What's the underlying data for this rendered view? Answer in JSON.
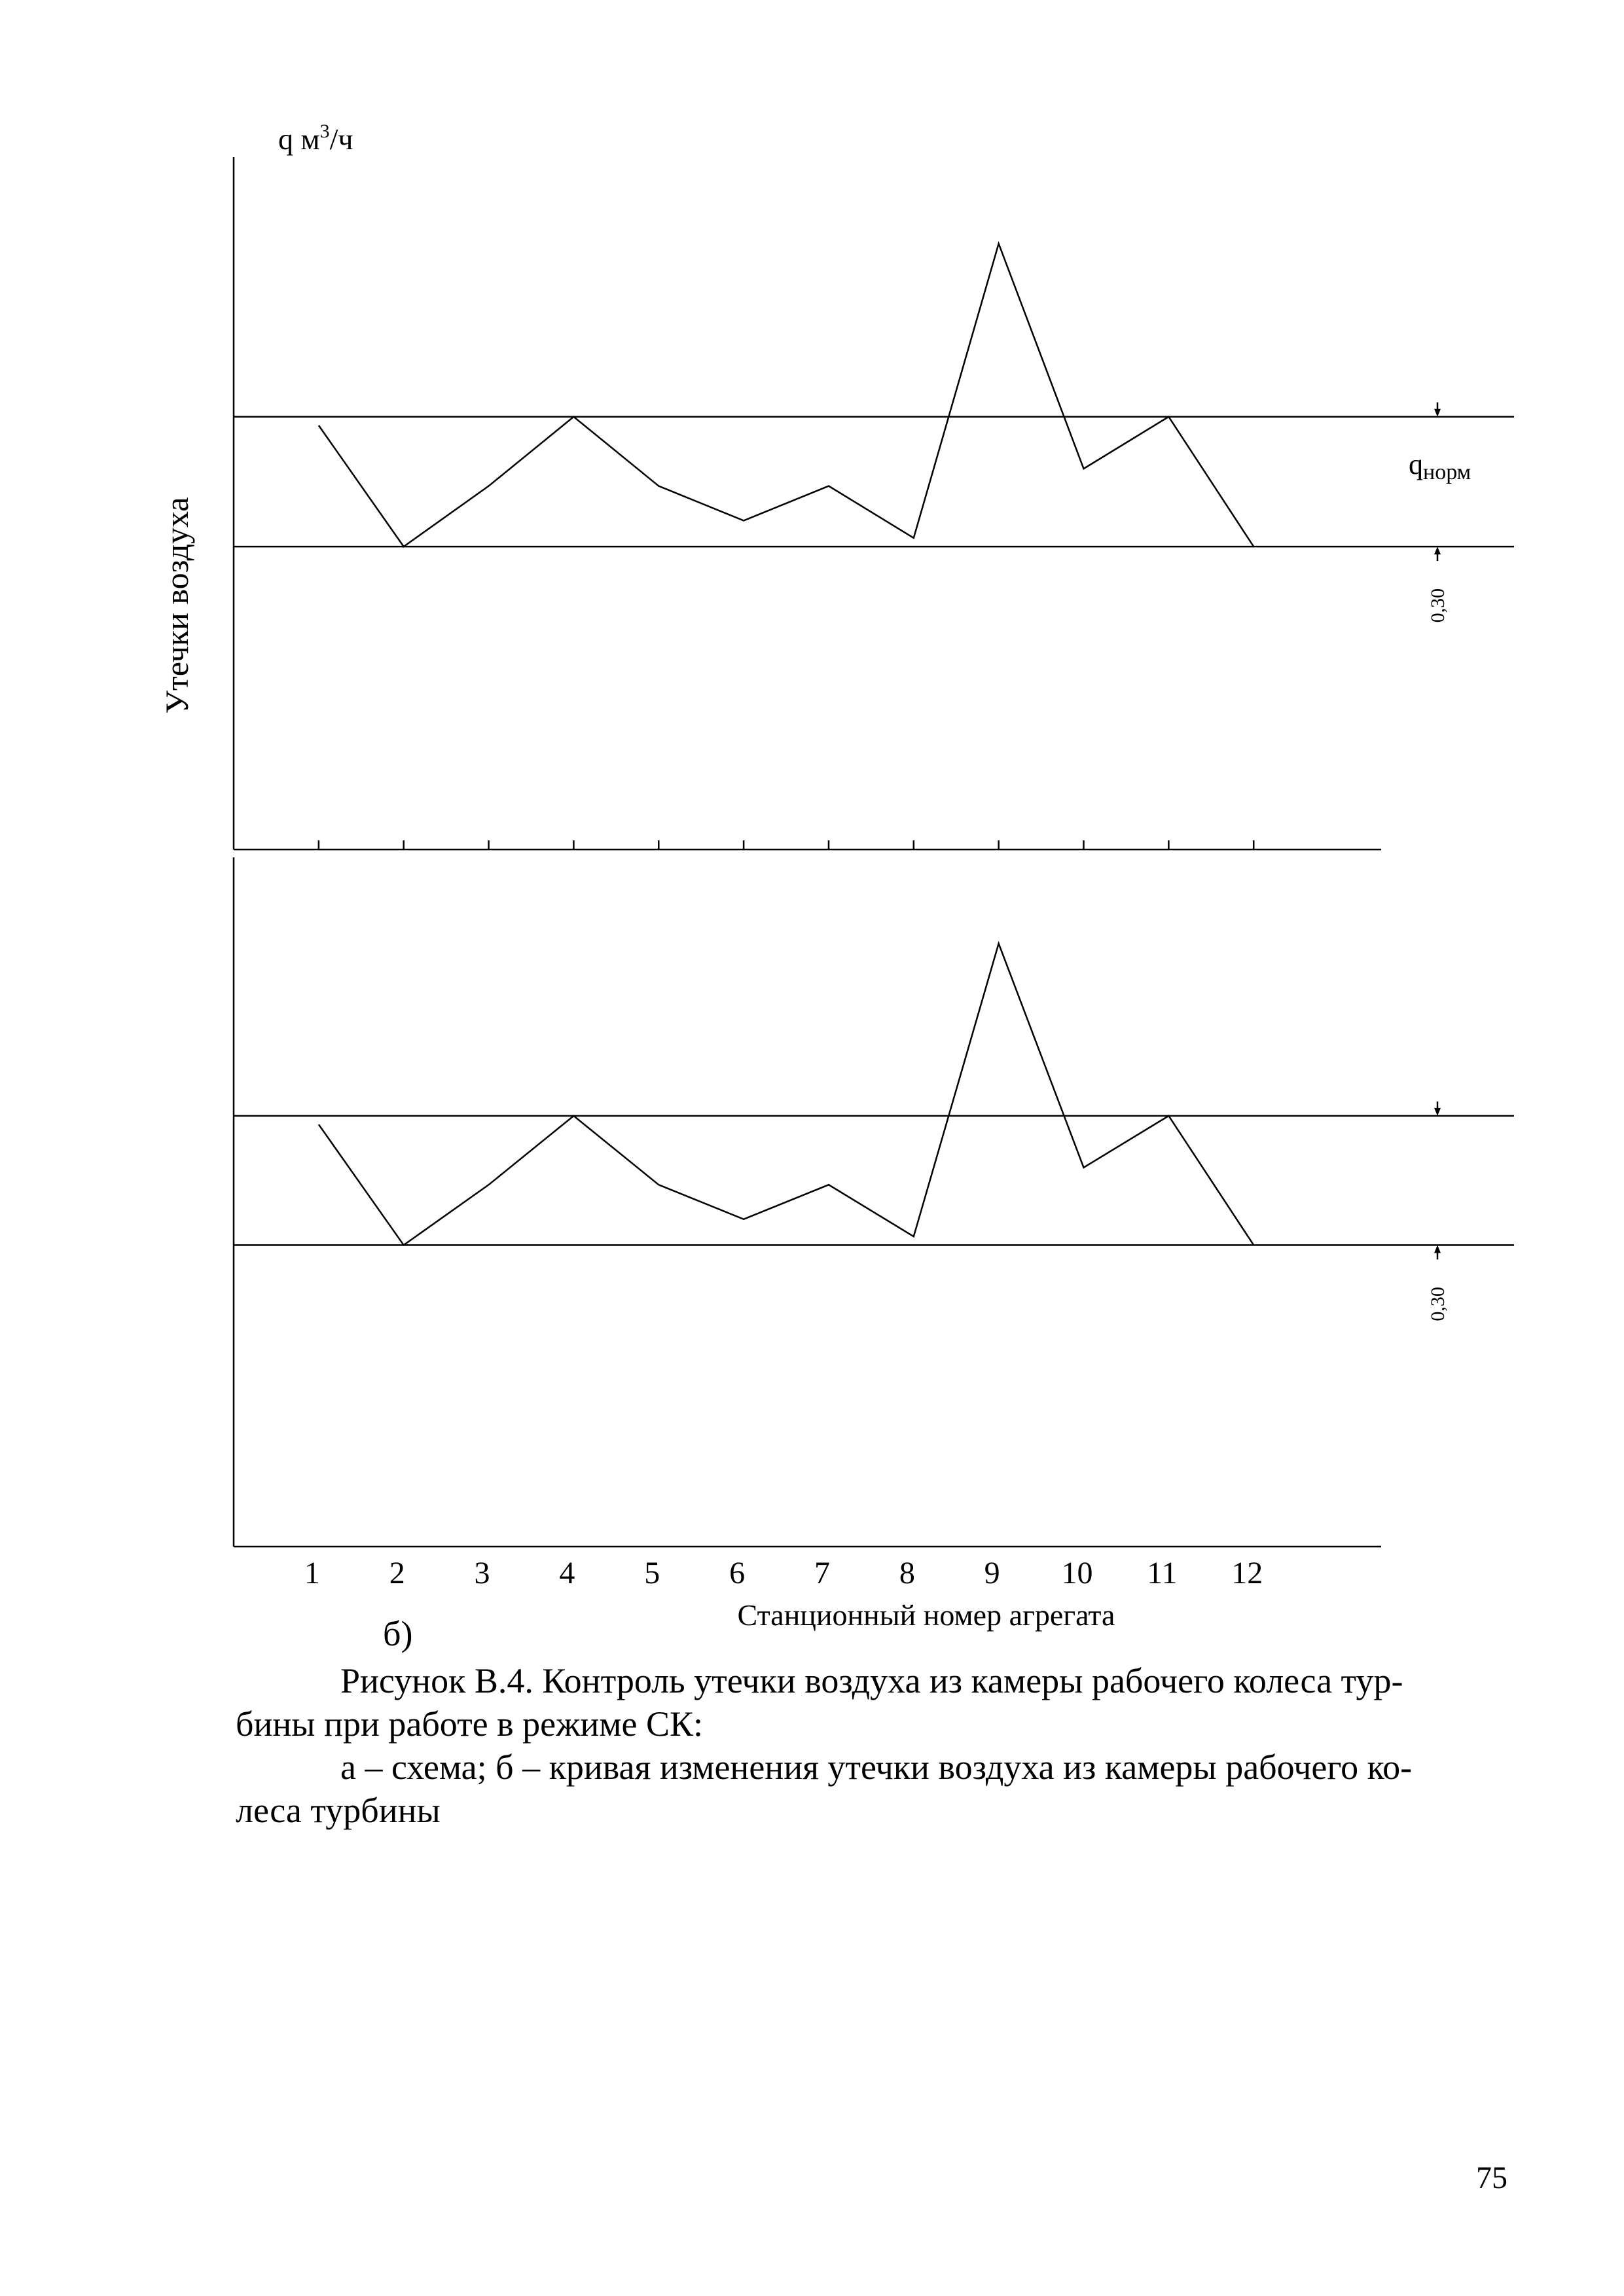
{
  "chart_data": [
    {
      "type": "line",
      "panel": "top",
      "ylabel": "Утечки воздуха",
      "ylabel_top": "q м",
      "ylabel_top_sup": "3",
      "ylabel_top_unit": "/ч",
      "x": [
        1,
        2,
        3,
        4,
        5,
        6,
        7,
        8,
        9,
        10,
        11,
        12
      ],
      "values": [
        0.28,
        0.0,
        0.14,
        0.3,
        0.14,
        0.06,
        0.14,
        0.02,
        0.7,
        0.18,
        0.3,
        0.0
      ],
      "ylim": [
        -0.7,
        0.9
      ],
      "xlim": [
        0,
        13.5
      ],
      "reference_lines": [
        0.0,
        0.3
      ],
      "band_label": "q",
      "band_label_sub": "норм",
      "band_dimension": "0,30",
      "show_tick_labels": false
    },
    {
      "type": "line",
      "panel": "bottom",
      "x": [
        1,
        2,
        3,
        4,
        5,
        6,
        7,
        8,
        9,
        10,
        11,
        12
      ],
      "values": [
        0.28,
        0.0,
        0.14,
        0.3,
        0.14,
        0.06,
        0.14,
        0.02,
        0.7,
        0.18,
        0.3,
        0.0
      ],
      "ylim": [
        -0.7,
        0.9
      ],
      "xlim": [
        0,
        13.5
      ],
      "reference_lines": [
        0.0,
        0.3
      ],
      "band_dimension": "0,30",
      "xlabel": "Станционный номер агрегата",
      "tick_labels": [
        "1",
        "2",
        "3",
        "4",
        "5",
        "6",
        "7",
        "8",
        "9",
        "10",
        "11",
        "12"
      ],
      "show_tick_labels": true
    }
  ],
  "subfigure_label": "б)",
  "caption": {
    "line1": "Рисунок В.4. Контроль утечки воздуха из камеры рабочего колеса тур-",
    "line2": "бины при работе в режиме СК:",
    "line3": "а – схема; б – кривая изменения утечки воздуха из камеры рабочего ко-",
    "line4": "леса турбины"
  },
  "page_number": "75"
}
